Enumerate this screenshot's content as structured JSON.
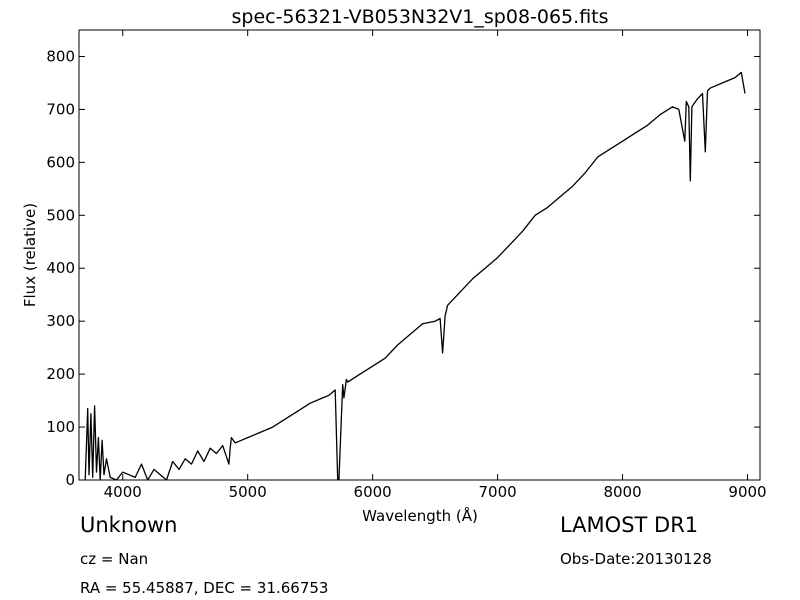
{
  "chart_data": {
    "type": "line",
    "title": "spec-56321-VB053N32V1_sp08-065.fits",
    "xlabel": "Wavelength (Å)",
    "ylabel": "Flux (relative)",
    "xlim": [
      3650,
      9100
    ],
    "ylim": [
      0,
      850
    ],
    "xticks": [
      4000,
      5000,
      6000,
      7000,
      8000,
      9000
    ],
    "yticks": [
      0,
      100,
      200,
      300,
      400,
      500,
      600,
      700,
      800
    ],
    "grid": false,
    "line_color": "#000000",
    "series": [
      {
        "x": [
          3700,
          3720,
          3730,
          3745,
          3760,
          3775,
          3790,
          3805,
          3820,
          3835,
          3850,
          3870,
          3900,
          3950,
          4000,
          4050,
          4100,
          4150,
          4200,
          4250,
          4300,
          4350,
          4400,
          4450,
          4500,
          4550,
          4600,
          4650,
          4700,
          4750,
          4800,
          4850,
          4860,
          4870,
          4900,
          4950,
          5000,
          5100,
          5200,
          5300,
          5400,
          5500,
          5600,
          5650,
          5700,
          5720,
          5730,
          5760,
          5770,
          5790,
          5800,
          5900,
          6000,
          6100,
          6200,
          6300,
          6400,
          6500,
          6540,
          6560,
          6580,
          6600,
          6700,
          6800,
          6900,
          7000,
          7100,
          7200,
          7300,
          7400,
          7500,
          7600,
          7700,
          7800,
          7900,
          8000,
          8100,
          8200,
          8300,
          8400,
          8450,
          8498,
          8510,
          8530,
          8542,
          8555,
          8600,
          8640,
          8662,
          8680,
          8700,
          8800,
          8900,
          8950,
          8980
        ],
        "y": [
          0,
          135,
          10,
          125,
          5,
          140,
          15,
          80,
          0,
          75,
          10,
          40,
          5,
          0,
          15,
          10,
          5,
          30,
          0,
          20,
          10,
          0,
          35,
          20,
          40,
          30,
          55,
          35,
          60,
          50,
          65,
          30,
          60,
          80,
          70,
          75,
          80,
          90,
          100,
          115,
          130,
          145,
          155,
          160,
          170,
          0,
          0,
          180,
          155,
          190,
          185,
          200,
          215,
          230,
          255,
          275,
          295,
          300,
          305,
          240,
          310,
          330,
          355,
          380,
          400,
          420,
          445,
          470,
          500,
          515,
          535,
          555,
          580,
          610,
          625,
          640,
          655,
          670,
          690,
          705,
          700,
          640,
          715,
          705,
          565,
          705,
          720,
          730,
          620,
          735,
          740,
          750,
          760,
          770,
          730
        ]
      }
    ]
  },
  "info": {
    "object_class": "Unknown",
    "redshift": "cz = Nan",
    "coordinates": "RA = 55.45887, DEC = 31.66753",
    "survey": "LAMOST DR1",
    "obs_date": "Obs-Date:20130128"
  }
}
